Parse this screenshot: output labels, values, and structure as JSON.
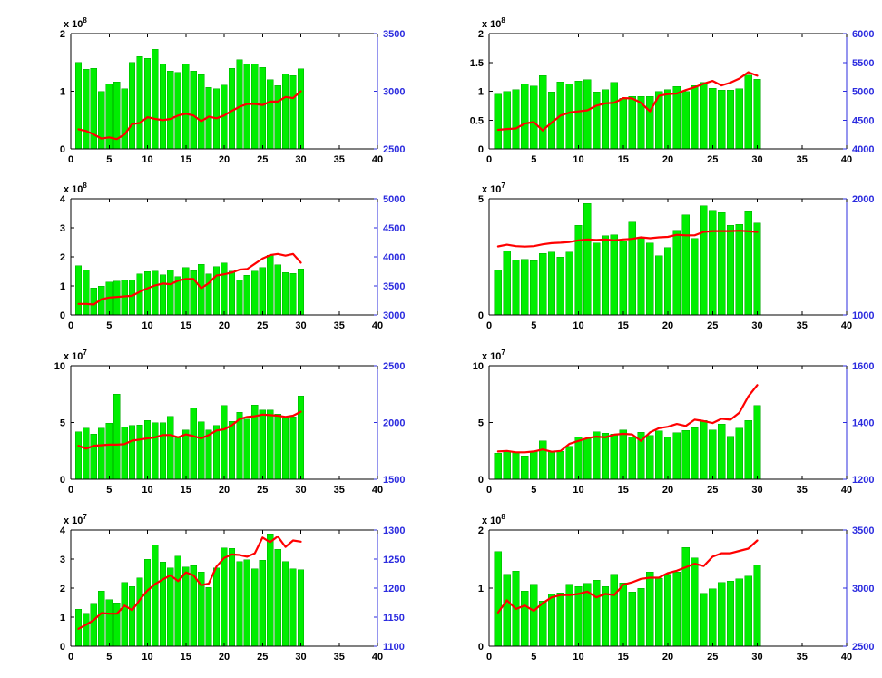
{
  "figure": {
    "background_color": "#ffffff",
    "bar_color": "#00ee00",
    "bar_edge_color": "#00aa00",
    "line_color": "#ff0000",
    "axis_color": "#000000",
    "right_axis_color": "#2b2bdf",
    "x_values": [
      1,
      2,
      3,
      4,
      5,
      6,
      7,
      8,
      9,
      10,
      11,
      12,
      13,
      14,
      15,
      16,
      17,
      18,
      19,
      20,
      21,
      22,
      23,
      24,
      25,
      26,
      27,
      28,
      29,
      30
    ]
  },
  "chart_data": [
    {
      "name": "subplot-r1c1",
      "type": "bar+line",
      "row": 1,
      "col": 1,
      "left_axis": {
        "scale_prefix": "x 10",
        "scale_exponent": "8",
        "lim": [
          0,
          2
        ],
        "ticks": [
          0,
          1,
          2
        ]
      },
      "right_axis": {
        "lim": [
          2500,
          3500
        ],
        "ticks": [
          2500,
          3000,
          3500
        ]
      },
      "x_axis": {
        "lim": [
          0,
          40
        ],
        "ticks": [
          0,
          5,
          10,
          15,
          20,
          25,
          30,
          35,
          40
        ]
      },
      "bars": [
        1.5,
        1.38,
        1.4,
        1.0,
        1.13,
        1.16,
        1.04,
        1.5,
        1.6,
        1.57,
        1.73,
        1.48,
        1.35,
        1.33,
        1.47,
        1.35,
        1.29,
        1.07,
        1.04,
        1.11,
        1.4,
        1.55,
        1.48,
        1.47,
        1.41,
        1.2,
        1.1,
        1.3,
        1.27,
        1.39
      ],
      "line": [
        2670,
        2655,
        2625,
        2590,
        2600,
        2585,
        2625,
        2715,
        2725,
        2775,
        2760,
        2750,
        2760,
        2790,
        2805,
        2790,
        2740,
        2780,
        2765,
        2790,
        2830,
        2865,
        2890,
        2890,
        2880,
        2910,
        2910,
        2950,
        2940,
        3000
      ]
    },
    {
      "name": "subplot-r1c2",
      "type": "bar+line",
      "row": 1,
      "col": 2,
      "left_axis": {
        "scale_prefix": "x 10",
        "scale_exponent": "8",
        "lim": [
          0,
          2
        ],
        "ticks": [
          0,
          0.5,
          1,
          1.5,
          2
        ]
      },
      "right_axis": {
        "lim": [
          4000,
          6000
        ],
        "ticks": [
          4000,
          4500,
          5000,
          5500,
          6000
        ]
      },
      "x_axis": {
        "lim": [
          0,
          40
        ],
        "ticks": [
          0,
          5,
          10,
          15,
          20,
          25,
          30,
          35,
          40
        ]
      },
      "bars": [
        0.95,
        1.0,
        1.03,
        1.13,
        1.09,
        1.27,
        0.99,
        1.16,
        1.13,
        1.18,
        1.2,
        0.99,
        1.03,
        1.15,
        0.88,
        0.91,
        0.91,
        0.91,
        1.0,
        1.03,
        1.08,
        1.0,
        1.1,
        1.15,
        1.05,
        1.02,
        1.02,
        1.04,
        1.28,
        1.21
      ],
      "line": [
        4330,
        4345,
        4355,
        4440,
        4465,
        4320,
        4455,
        4580,
        4630,
        4650,
        4670,
        4750,
        4790,
        4800,
        4880,
        4875,
        4800,
        4650,
        4920,
        4950,
        4960,
        5020,
        5070,
        5130,
        5180,
        5100,
        5150,
        5220,
        5330,
        5270
      ]
    },
    {
      "name": "subplot-r2c1",
      "type": "bar+line",
      "row": 2,
      "col": 1,
      "left_axis": {
        "scale_prefix": "x 10",
        "scale_exponent": "8",
        "lim": [
          0,
          4
        ],
        "ticks": [
          0,
          1,
          2,
          3,
          4
        ]
      },
      "right_axis": {
        "lim": [
          3000,
          5000
        ],
        "ticks": [
          3000,
          3500,
          4000,
          4500,
          5000
        ]
      },
      "x_axis": {
        "lim": [
          0,
          40
        ],
        "ticks": [
          0,
          5,
          10,
          15,
          20,
          25,
          30,
          35,
          40
        ]
      },
      "bars": [
        1.7,
        1.55,
        0.93,
        1.0,
        1.13,
        1.16,
        1.19,
        1.21,
        1.42,
        1.5,
        1.51,
        1.38,
        1.54,
        1.32,
        1.64,
        1.53,
        1.75,
        1.42,
        1.67,
        1.79,
        1.51,
        1.21,
        1.36,
        1.51,
        1.64,
        2.06,
        1.73,
        1.46,
        1.43,
        1.58
      ],
      "line": [
        3190,
        3190,
        3180,
        3270,
        3300,
        3310,
        3320,
        3330,
        3400,
        3460,
        3510,
        3540,
        3530,
        3590,
        3620,
        3620,
        3460,
        3550,
        3680,
        3700,
        3730,
        3780,
        3790,
        3880,
        3970,
        4030,
        4050,
        4020,
        4050,
        3900
      ]
    },
    {
      "name": "subplot-r2c2",
      "type": "bar+line",
      "row": 2,
      "col": 2,
      "left_axis": {
        "scale_prefix": "x 10",
        "scale_exponent": "7",
        "lim": [
          0,
          5
        ],
        "ticks": [
          0,
          5
        ]
      },
      "right_axis": {
        "lim": [
          1000,
          2000
        ],
        "ticks": [
          1000,
          2000
        ]
      },
      "x_axis": {
        "lim": [
          0,
          40
        ],
        "ticks": [
          0,
          5,
          10,
          15,
          20,
          25,
          30,
          35,
          40
        ]
      },
      "bars": [
        1.95,
        2.75,
        2.35,
        2.4,
        2.33,
        2.65,
        2.7,
        2.5,
        2.7,
        3.85,
        4.8,
        3.1,
        3.4,
        3.45,
        3.2,
        4.0,
        3.3,
        3.1,
        2.55,
        2.9,
        3.65,
        4.3,
        3.3,
        4.7,
        4.5,
        4.4,
        3.85,
        3.9,
        4.45,
        3.95
      ],
      "line": [
        1590,
        1605,
        1592,
        1588,
        1592,
        1608,
        1618,
        1622,
        1628,
        1642,
        1650,
        1645,
        1650,
        1642,
        1650,
        1655,
        1668,
        1660,
        1668,
        1672,
        1690,
        1685,
        1685,
        1715,
        1722,
        1722,
        1722,
        1725,
        1720,
        1715
      ]
    },
    {
      "name": "subplot-r3c1",
      "type": "bar+line",
      "row": 3,
      "col": 1,
      "left_axis": {
        "scale_prefix": "x 10",
        "scale_exponent": "7",
        "lim": [
          0,
          10
        ],
        "ticks": [
          0,
          5,
          10
        ]
      },
      "right_axis": {
        "lim": [
          1500,
          2500
        ],
        "ticks": [
          1500,
          2000,
          2500
        ]
      },
      "x_axis": {
        "lim": [
          0,
          40
        ],
        "ticks": [
          0,
          5,
          10,
          15,
          20,
          25,
          30,
          35,
          40
        ]
      },
      "bars": [
        4.2,
        4.5,
        4.0,
        4.5,
        4.95,
        7.5,
        4.6,
        4.75,
        4.8,
        5.2,
        5.0,
        5.0,
        5.55,
        3.7,
        4.35,
        6.3,
        5.05,
        4.35,
        4.75,
        6.5,
        5.1,
        5.9,
        5.3,
        6.55,
        6.1,
        6.1,
        5.75,
        5.4,
        5.5,
        7.35
      ],
      "line": [
        1795,
        1770,
        1795,
        1800,
        1805,
        1805,
        1810,
        1840,
        1850,
        1860,
        1870,
        1890,
        1890,
        1870,
        1895,
        1880,
        1860,
        1890,
        1930,
        1940,
        1975,
        2030,
        2050,
        2055,
        2070,
        2065,
        2060,
        2050,
        2060,
        2095
      ]
    },
    {
      "name": "subplot-r3c2",
      "type": "bar+line",
      "row": 3,
      "col": 2,
      "left_axis": {
        "scale_prefix": "x 10",
        "scale_exponent": "7",
        "lim": [
          0,
          10
        ],
        "ticks": [
          0,
          5,
          10
        ]
      },
      "right_axis": {
        "lim": [
          1200,
          1600
        ],
        "ticks": [
          1200,
          1400,
          1600
        ]
      },
      "x_axis": {
        "lim": [
          0,
          40
        ],
        "ticks": [
          0,
          5,
          10,
          15,
          20,
          25,
          30,
          35,
          40
        ]
      },
      "bars": [
        2.3,
        2.5,
        2.4,
        2.05,
        2.45,
        3.4,
        2.45,
        2.45,
        2.9,
        3.7,
        3.6,
        4.2,
        4.05,
        4.0,
        4.35,
        3.7,
        4.15,
        3.85,
        4.25,
        3.7,
        4.1,
        4.3,
        4.55,
        5.2,
        4.35,
        4.85,
        3.8,
        4.5,
        5.2,
        6.5
      ],
      "line": [
        1298,
        1300,
        1295,
        1295,
        1298,
        1305,
        1297,
        1300,
        1325,
        1335,
        1345,
        1350,
        1348,
        1357,
        1360,
        1358,
        1335,
        1365,
        1380,
        1385,
        1395,
        1388,
        1410,
        1405,
        1398,
        1413,
        1410,
        1435,
        1492,
        1532
      ]
    },
    {
      "name": "subplot-r4c1",
      "type": "bar+line",
      "row": 4,
      "col": 1,
      "left_axis": {
        "scale_prefix": "x 10",
        "scale_exponent": "7",
        "lim": [
          0,
          4
        ],
        "ticks": [
          0,
          1,
          2,
          3,
          4
        ]
      },
      "right_axis": {
        "lim": [
          1100,
          1300
        ],
        "ticks": [
          1100,
          1150,
          1200,
          1250,
          1300
        ]
      },
      "x_axis": {
        "lim": [
          0,
          40
        ],
        "ticks": [
          0,
          5,
          10,
          15,
          20,
          25,
          30,
          35,
          40
        ]
      },
      "bars": [
        1.27,
        1.13,
        1.48,
        1.9,
        1.6,
        1.5,
        2.2,
        2.05,
        2.35,
        3.0,
        3.47,
        2.9,
        2.7,
        3.1,
        2.72,
        2.78,
        2.55,
        2.02,
        2.7,
        3.38,
        3.36,
        2.92,
        2.97,
        2.67,
        2.96,
        3.87,
        3.33,
        2.92,
        2.67,
        2.64
      ],
      "line": [
        1130,
        1137,
        1145,
        1157,
        1156,
        1156,
        1170,
        1162,
        1180,
        1196,
        1207,
        1215,
        1222,
        1212,
        1227,
        1222,
        1205,
        1208,
        1237,
        1252,
        1258,
        1257,
        1254,
        1260,
        1287,
        1279,
        1289,
        1271,
        1282,
        1280
      ]
    },
    {
      "name": "subplot-r4c2",
      "type": "bar+line",
      "row": 4,
      "col": 2,
      "left_axis": {
        "scale_prefix": "x 10",
        "scale_exponent": "8",
        "lim": [
          0,
          2
        ],
        "ticks": [
          0,
          1,
          2
        ]
      },
      "right_axis": {
        "lim": [
          2500,
          3500
        ],
        "ticks": [
          2500,
          3000,
          3500
        ]
      },
      "x_axis": {
        "lim": [
          0,
          40
        ],
        "ticks": [
          0,
          5,
          10,
          15,
          20,
          25,
          30,
          35,
          40
        ]
      },
      "bars": [
        1.63,
        1.24,
        1.29,
        0.95,
        1.07,
        0.78,
        0.9,
        0.92,
        1.07,
        1.03,
        1.08,
        1.14,
        1.03,
        1.24,
        1.09,
        0.93,
        1.0,
        1.28,
        1.17,
        1.24,
        1.28,
        1.7,
        1.52,
        0.91,
        0.99,
        1.1,
        1.12,
        1.16,
        1.21,
        1.4
      ],
      "line": [
        2790,
        2895,
        2820,
        2850,
        2805,
        2870,
        2920,
        2940,
        2940,
        2950,
        2970,
        2920,
        2950,
        2940,
        3030,
        3050,
        3080,
        3090,
        3090,
        3130,
        3150,
        3180,
        3210,
        3190,
        3270,
        3300,
        3300,
        3320,
        3340,
        3410
      ]
    }
  ]
}
